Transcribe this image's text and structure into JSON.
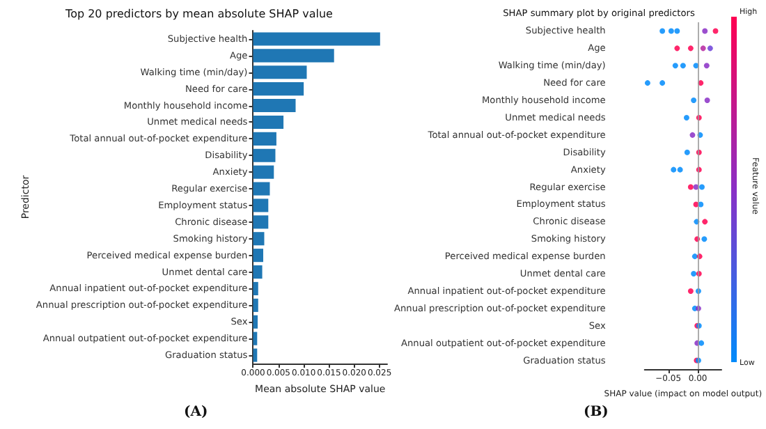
{
  "chart_data": [
    {
      "type": "bar",
      "orientation": "horizontal",
      "title": "Top 20 predictors by mean absolute SHAP value",
      "xlabel": "Mean absolute SHAP value",
      "ylabel": "Predictor",
      "color": "#1f77b4",
      "categories": [
        "Subjective health",
        "Age",
        "Walking time (min/day)",
        "Need for care",
        "Monthly household income",
        "Unmet medical needs",
        "Total annual out-of-pocket expenditure",
        "Disability",
        "Anxiety",
        "Regular exercise",
        "Employment status",
        "Chronic disease",
        "Smoking history",
        "Perceived medical expense burden",
        "Unmet dental care",
        "Annual inpatient out-of-pocket expenditure",
        "Annual prescription out-of-pocket expenditure",
        "Sex",
        "Annual outpatient out-of-pocket expenditure",
        "Graduation status"
      ],
      "values": [
        0.0251,
        0.016,
        0.0106,
        0.01,
        0.0084,
        0.006,
        0.0046,
        0.0044,
        0.0041,
        0.0033,
        0.003,
        0.003,
        0.0022,
        0.002,
        0.0018,
        0.001,
        0.001,
        0.0009,
        0.0008,
        0.0008
      ],
      "xlim": [
        0,
        0.0265
      ],
      "xticks": [
        {
          "value": 0,
          "label": "0.000"
        },
        {
          "value": 0.005,
          "label": "0.005"
        },
        {
          "value": 0.01,
          "label": "0.010"
        },
        {
          "value": 0.015,
          "label": "0.015"
        },
        {
          "value": 0.02,
          "label": "0.020"
        },
        {
          "value": 0.025,
          "label": "0.025"
        }
      ],
      "annotations": [
        "(A)"
      ]
    },
    {
      "type": "scatter",
      "orientation": "horizontal",
      "title": "SHAP summary plot by original predictors",
      "xlabel": "SHAP value (impact on model output)",
      "clabel": "Feature value",
      "categories": [
        "Subjective health",
        "Age",
        "Walking time (min/day)",
        "Need for care",
        "Monthly household income",
        "Unmet medical needs",
        "Total annual out-of-pocket expenditure",
        "Disability",
        "Anxiety",
        "Regular exercise",
        "Employment status",
        "Chronic disease",
        "Smoking history",
        "Perceived medical expense burden",
        "Unmet dental care",
        "Annual inpatient out-of-pocket expenditure",
        "Annual prescription out-of-pocket expenditure",
        "Sex",
        "Annual outpatient out-of-pocket expenditure",
        "Graduation status"
      ],
      "series": [
        {
          "x": [
            "Subjective health",
            "Subjective health",
            "Subjective health",
            "Subjective health",
            "Subjective health",
            "Age",
            "Age",
            "Age",
            "Age",
            "Walking time (min/day)",
            "Walking time (min/day)",
            "Walking time (min/day)",
            "Walking time (min/day)",
            "Need for care",
            "Need for care",
            "Need for care",
            "Monthly household income",
            "Monthly household income",
            "Unmet medical needs",
            "Unmet medical needs",
            "Total annual out-of-pocket expenditure",
            "Total annual out-of-pocket expenditure",
            "Disability",
            "Disability",
            "Anxiety",
            "Anxiety",
            "Anxiety",
            "Regular exercise",
            "Regular exercise",
            "Regular exercise",
            "Employment status",
            "Employment status",
            "Chronic disease",
            "Chronic disease",
            "Smoking history",
            "Smoking history",
            "Perceived medical expense burden",
            "Perceived medical expense burden",
            "Unmet dental care",
            "Unmet dental care",
            "Annual inpatient out-of-pocket expenditure",
            "Annual inpatient out-of-pocket expenditure",
            "Annual prescription out-of-pocket expenditure",
            "Annual prescription out-of-pocket expenditure",
            "Sex",
            "Sex",
            "Annual outpatient out-of-pocket expenditure",
            "Annual outpatient out-of-pocket expenditure",
            "Graduation status",
            "Graduation status"
          ],
          "values": [
            -0.06,
            -0.045,
            -0.035,
            0.012,
            0.03,
            -0.035,
            -0.012,
            0.009,
            0.021,
            -0.038,
            -0.025,
            -0.003,
            0.015,
            -0.085,
            -0.06,
            0.005,
            -0.007,
            0.016,
            -0.019,
            0.002,
            -0.009,
            0.004,
            -0.018,
            0.002,
            -0.041,
            -0.03,
            0.002,
            -0.012,
            -0.003,
            0.007,
            -0.003,
            0.005,
            -0.002,
            0.012,
            -0.001,
            0.011,
            -0.005,
            0.003,
            -0.007,
            0.002,
            -0.012,
            0.001,
            -0.005,
            0.001,
            -0.001,
            0.002,
            -0.001,
            0.006,
            -0.002,
            0.001
          ],
          "colors": [
            "#008bfb",
            "#008bfb",
            "#008bfb",
            "#8a2fc6",
            "#ff0051",
            "#ff0051",
            "#ff0051",
            "#b524a0",
            "#6c3fd8",
            "#008bfb",
            "#008bfb",
            "#008bfb",
            "#8a2fc6",
            "#008bfb",
            "#008bfb",
            "#ff0051",
            "#008bfb",
            "#8a2fc6",
            "#008bfb",
            "#ff0051",
            "#8a2fc6",
            "#008bfb",
            "#008bfb",
            "#ff0051",
            "#008bfb",
            "#008bfb",
            "#ff0051",
            "#ff0051",
            "#8a2fc6",
            "#008bfb",
            "#ff0051",
            "#008bfb",
            "#008bfb",
            "#ff0051",
            "#ff0051",
            "#008bfb",
            "#008bfb",
            "#ff0051",
            "#008bfb",
            "#ff0051",
            "#ff0051",
            "#008bfb",
            "#008bfb",
            "#8a2fc6",
            "#ff0051",
            "#008bfb",
            "#8a2fc6",
            "#008bfb",
            "#ff0051",
            "#008bfb"
          ]
        }
      ],
      "xlim": [
        -0.09,
        0.04
      ],
      "xticks": [
        {
          "value": -0.05,
          "label": "−0.05"
        },
        {
          "value": 0,
          "label": "0.00"
        }
      ],
      "ref_lines": [
        {
          "axis": "x",
          "value": 0,
          "color": "#999999"
        }
      ],
      "annotations": [
        "(B)",
        "High",
        "Low"
      ]
    }
  ]
}
